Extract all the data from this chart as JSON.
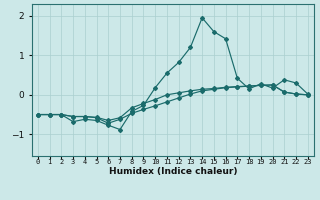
{
  "xlabel": "Humidex (Indice chaleur)",
  "bg_color": "#cce8e8",
  "line_color": "#1a6b6b",
  "grid_color": "#aacfcf",
  "x_ticks": [
    0,
    1,
    2,
    3,
    4,
    5,
    6,
    7,
    8,
    9,
    10,
    11,
    12,
    13,
    14,
    15,
    16,
    17,
    18,
    19,
    20,
    21,
    22,
    23
  ],
  "ylim": [
    -1.55,
    2.3
  ],
  "xlim": [
    -0.5,
    23.5
  ],
  "series1_x": [
    0,
    1,
    2,
    3,
    4,
    5,
    6,
    7,
    8,
    9,
    10,
    11,
    12,
    13,
    14,
    15,
    16,
    17,
    18,
    19,
    20,
    21,
    22,
    23
  ],
  "series1_y": [
    -0.5,
    -0.5,
    -0.5,
    -0.55,
    -0.55,
    -0.57,
    -0.65,
    -0.58,
    -0.33,
    -0.22,
    -0.12,
    0.0,
    0.05,
    0.1,
    0.14,
    0.16,
    0.19,
    0.21,
    0.22,
    0.24,
    0.25,
    0.07,
    0.02,
    0.0
  ],
  "series2_x": [
    0,
    1,
    2,
    3,
    4,
    5,
    6,
    7,
    8,
    9,
    10,
    11,
    12,
    13,
    14,
    15,
    16,
    17,
    18,
    19,
    20,
    21,
    22,
    23
  ],
  "series2_y": [
    -0.5,
    -0.5,
    -0.5,
    -0.68,
    -0.62,
    -0.65,
    -0.77,
    -0.88,
    -0.42,
    -0.27,
    0.18,
    0.55,
    0.82,
    1.2,
    1.95,
    1.6,
    1.42,
    0.42,
    0.15,
    0.28,
    0.17,
    0.38,
    0.3,
    0.02
  ],
  "series3_x": [
    0,
    1,
    2,
    3,
    4,
    5,
    6,
    7,
    8,
    9,
    10,
    11,
    12,
    13,
    14,
    15,
    16,
    17,
    18,
    19,
    20,
    21,
    22,
    23
  ],
  "series3_y": [
    -0.5,
    -0.5,
    -0.5,
    -0.55,
    -0.55,
    -0.58,
    -0.72,
    -0.62,
    -0.47,
    -0.37,
    -0.28,
    -0.18,
    -0.08,
    0.02,
    0.1,
    0.14,
    0.18,
    0.2,
    0.22,
    0.24,
    0.25,
    0.07,
    0.02,
    0.0
  ]
}
